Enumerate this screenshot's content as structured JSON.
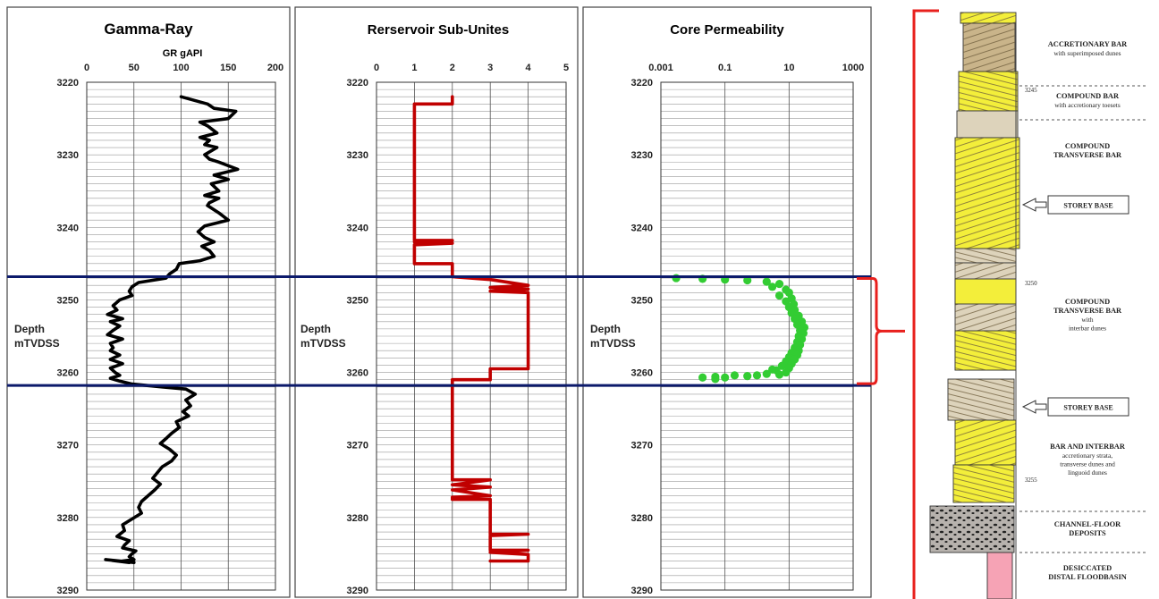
{
  "chart_data": [
    {
      "type": "line",
      "title": "Gamma-Ray",
      "xlabel": "GR gAPI",
      "ylabel": "Depth\nmTVDSS",
      "xlim": [
        0,
        200
      ],
      "xticks": [
        "0",
        "50",
        "100",
        "150",
        "200"
      ],
      "ylim": [
        3220,
        3290
      ],
      "yticks": [
        "3220",
        "3230",
        "3240",
        "3250",
        "3260",
        "3270",
        "3280",
        "3290"
      ],
      "color": "#000000",
      "series": [
        {
          "x": [
            100,
            128,
            135,
            158,
            150,
            120,
            128,
            138,
            120,
            130,
            125,
            138,
            125,
            130,
            140,
            160,
            135,
            150,
            132,
            140,
            125,
            140,
            130,
            128,
            140,
            150,
            125,
            118,
            125,
            135,
            122,
            130,
            135,
            120,
            98,
            95,
            88,
            84,
            55,
            48,
            45,
            48,
            35,
            28,
            32,
            22,
            38,
            25,
            35,
            28,
            22,
            38,
            25,
            28,
            25,
            35,
            25,
            38,
            25,
            30,
            35,
            25,
            35,
            48,
            80,
            105,
            115,
            105,
            110,
            102,
            108,
            95,
            98,
            90,
            85,
            78,
            88,
            95,
            90,
            80,
            75,
            70,
            78,
            72,
            65,
            58,
            55,
            58,
            48,
            38,
            40,
            32,
            45,
            40,
            38,
            52,
            48,
            45,
            50,
            38,
            45,
            20,
            50
          ],
          "y": [
            3222,
            3223,
            3223.6,
            3224,
            3225,
            3225.5,
            3226,
            3227,
            3227.6,
            3228,
            3228.6,
            3229,
            3230,
            3230.6,
            3231,
            3232,
            3232.8,
            3233.4,
            3234,
            3235,
            3235.6,
            3236,
            3236.6,
            3237,
            3238,
            3239,
            3239.8,
            3240.6,
            3241.4,
            3242,
            3242.6,
            3243.2,
            3244,
            3244.6,
            3245,
            3245.8,
            3246.4,
            3247,
            3247.6,
            3248.2,
            3248.8,
            3249.4,
            3250,
            3250.8,
            3251.4,
            3252,
            3252.6,
            3253,
            3253.6,
            3254.2,
            3254.8,
            3255.4,
            3256,
            3256.6,
            3257,
            3257.6,
            3258.2,
            3258.8,
            3259.4,
            3260,
            3260.4,
            3260.8,
            3261.2,
            3261.6,
            3262,
            3262.3,
            3263,
            3263.8,
            3264.6,
            3265.4,
            3266,
            3266.8,
            3267.6,
            3268.4,
            3269,
            3269.8,
            3270.6,
            3271.4,
            3272.2,
            3273,
            3273.8,
            3274.6,
            3275.4,
            3276.2,
            3277,
            3277.8,
            3278.6,
            3279.4,
            3280.2,
            3281,
            3281.8,
            3282.6,
            3283.2,
            3283.8,
            3284.2,
            3284.6,
            3285,
            3285.4,
            3285.8,
            3286,
            3286.2,
            3285.8,
            3286.2
          ]
        }
      ]
    },
    {
      "type": "line",
      "title": "Rerservoir Sub-Unites",
      "xlabel": "",
      "ylabel": "Depth\nmTVDSS",
      "xlim": [
        0,
        5
      ],
      "xticks": [
        "0",
        "1",
        "2",
        "3",
        "4",
        "5"
      ],
      "ylim": [
        3220,
        3290
      ],
      "yticks": [
        "3220",
        "3230",
        "3240",
        "3250",
        "3260",
        "3270",
        "3280",
        "3290"
      ],
      "color": "#c00000",
      "series": [
        {
          "x": [
            2,
            2,
            1,
            1,
            2,
            1,
            2,
            1,
            1,
            2,
            2,
            3,
            4,
            3,
            4,
            3,
            4,
            4,
            3,
            3,
            2,
            2,
            3,
            2,
            3,
            2,
            3,
            2,
            2,
            3,
            3,
            4,
            3,
            3,
            4,
            3,
            4,
            4,
            3
          ],
          "y": [
            3222,
            3223,
            3223,
            3241.8,
            3241.8,
            3242,
            3242.2,
            3242.4,
            3245,
            3245,
            3246.8,
            3247.2,
            3248,
            3248.3,
            3248.5,
            3248.8,
            3249,
            3259.5,
            3259.5,
            3261,
            3261,
            3274.8,
            3274.8,
            3275.5,
            3275.8,
            3276.2,
            3277,
            3277.2,
            3277.5,
            3277.5,
            3282.3,
            3282.3,
            3282.5,
            3284.5,
            3284.5,
            3284.8,
            3285.1,
            3286,
            3286
          ]
        }
      ]
    },
    {
      "type": "scatter",
      "title": "Core Permeability",
      "xlabel": "",
      "ylabel": "Depth\nmTVDSS",
      "xscale": "log",
      "xlim": [
        0.001,
        1000
      ],
      "xticks": [
        "0.001",
        "0.1",
        "10",
        "1000"
      ],
      "ylim": [
        3220,
        3290
      ],
      "yticks": [
        "3220",
        "3230",
        "3240",
        "3250",
        "3260",
        "3270",
        "3280",
        "3290"
      ],
      "color": "#33cc33",
      "series": [
        {
          "x": [
            0.003,
            0.02,
            0.1,
            0.5,
            2,
            5,
            3,
            8,
            10,
            5,
            12,
            8,
            14,
            10,
            15,
            12,
            20,
            15,
            25,
            18,
            30,
            22,
            28,
            20,
            25,
            18,
            22,
            15,
            20,
            12,
            18,
            10,
            15,
            8,
            12,
            6,
            10,
            4,
            8,
            5,
            0.2,
            0.02,
            0.05,
            0.5,
            2,
            1,
            3,
            0.1,
            0.05
          ],
          "y": [
            3247,
            3247.1,
            3247.2,
            3247.3,
            3247.5,
            3247.8,
            3248.2,
            3248.6,
            3249,
            3249.4,
            3249.8,
            3250.2,
            3250.6,
            3251,
            3251.4,
            3251.8,
            3252.2,
            3252.6,
            3253,
            3253.4,
            3253.8,
            3254.2,
            3254.6,
            3255,
            3255.4,
            3255.8,
            3256.2,
            3256.6,
            3257,
            3257.3,
            3257.6,
            3257.9,
            3258.2,
            3258.5,
            3258.8,
            3259.1,
            3259.4,
            3259.7,
            3260,
            3260.3,
            3260.4,
            3260.7,
            3260.6,
            3260.5,
            3260.2,
            3260.4,
            3259.6,
            3260.7,
            3260.9
          ]
        }
      ]
    }
  ],
  "strat_column": {
    "labels": [
      {
        "head": "ACCRETIONARY BAR",
        "sub": "with superimposed dunes"
      },
      {
        "head": "COMPOUND BAR",
        "sub": "with accretionary toesets"
      },
      {
        "head": "COMPOUND\nTRANSVERSE BAR",
        "sub": ""
      },
      {
        "head": "COMPOUND\nTRANSVERSE BAR",
        "sub": "with\ninterbar           dunes"
      },
      {
        "head": "BAR AND INTERBAR",
        "sub": "accretionary strata,\ntransverse dunes and\nlinguoid dunes"
      },
      {
        "head": "CHANNEL-FLOOR\nDEPOSITS",
        "sub": ""
      },
      {
        "head": "DESICCATED\nDISTAL FLOODBASIN",
        "sub": ""
      }
    ],
    "storey_base_label": "STOREY BASE",
    "depth_marks": [
      "3245",
      "3250",
      "3255"
    ],
    "colors": {
      "sand": "#f3ee3a",
      "tan": "#c9b48a",
      "pale": "#ddd3bb",
      "floodbasin": "#f6a3b5",
      "bracket": "#e8201d",
      "horizon": "#0c1a6b"
    }
  }
}
